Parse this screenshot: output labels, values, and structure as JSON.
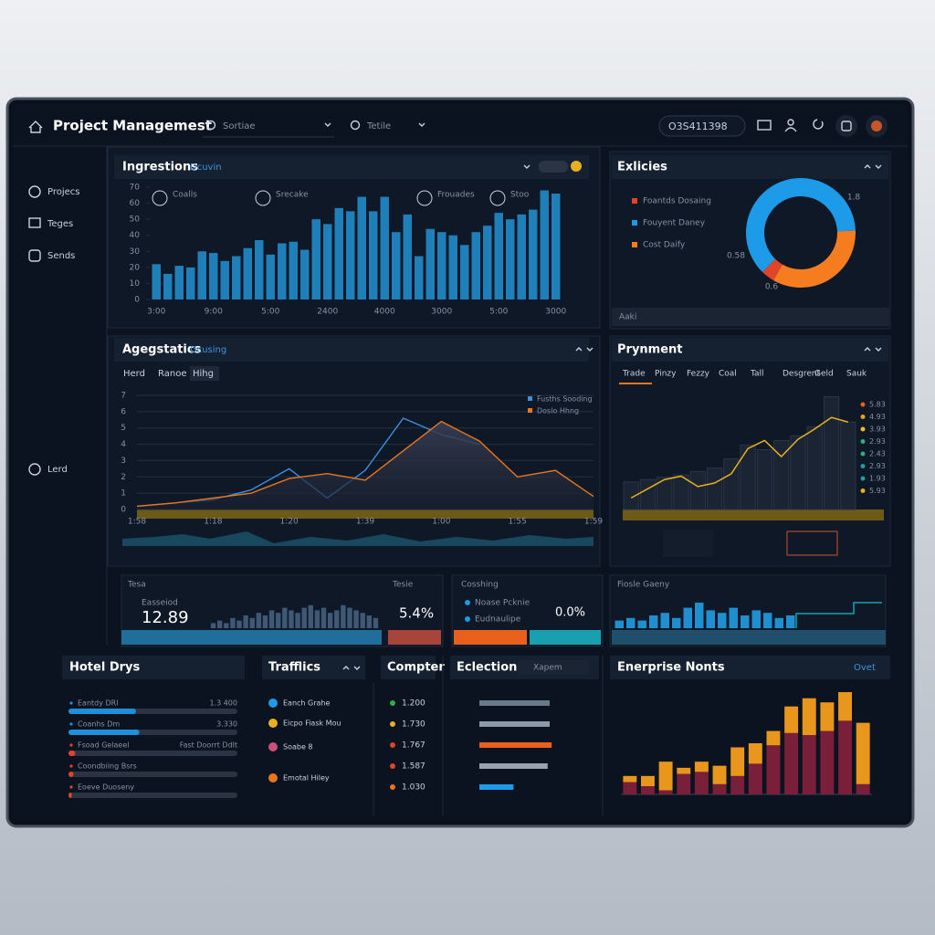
{
  "header": {
    "title": "Project Managemest",
    "search": "Sortiae",
    "filter": "Tetile",
    "account": "O3S411398"
  },
  "sidebar": {
    "items": [
      "Projecs",
      "Teges",
      "Sends"
    ],
    "footer": "Lerd"
  },
  "inputs": {
    "exlicies": "Aaki",
    "eclection": "Xapem",
    "enterprise": "Ovet"
  },
  "kpis": [
    {
      "title": "Tesa",
      "value": "12.89",
      "label": "Easseiod"
    },
    {
      "title": "Tesie",
      "value": "5.4%"
    },
    {
      "title": "Cosshing",
      "value": "0.0%",
      "items": [
        "Noase Pcknie",
        "Eudnaulipe"
      ]
    },
    {
      "title": "Fiosle Gaeny"
    }
  ],
  "traffics": {
    "title": "Trafflics",
    "items": [
      "Eanch Grahe",
      "Eicpo Fiask Mou",
      "Soabe 8",
      "Emotal Hiley"
    ]
  },
  "compter": {
    "title": "Compter",
    "items": [
      "1.200",
      "1.730",
      "1.767",
      "1.587",
      "1.030"
    ]
  },
  "chart_data": [
    {
      "type": "bar",
      "title": "Ingrestions",
      "subtitle": "Dcuvin",
      "color": "#1f7fb8",
      "annotations": [
        "Coalls",
        "Srecake",
        "Frouades",
        "Stoo"
      ],
      "categories": [
        "3:00",
        null,
        null,
        null,
        null,
        "9:00",
        null,
        null,
        null,
        null,
        "5:00",
        null,
        null,
        null,
        null,
        "2400",
        null,
        null,
        null,
        null,
        "4000",
        null,
        null,
        null,
        null,
        "3000",
        null,
        null,
        null,
        null,
        "5:00",
        null,
        null,
        null,
        null,
        "3000"
      ],
      "values": [
        22,
        16,
        21,
        20,
        30,
        29,
        24,
        27,
        32,
        37,
        28,
        35,
        36,
        31,
        50,
        47,
        57,
        55,
        64,
        55,
        64,
        42,
        53,
        27,
        44,
        42,
        40,
        34,
        42,
        46,
        54,
        50,
        53,
        56,
        68,
        66
      ],
      "ylim": [
        0,
        70
      ],
      "yticks": [
        0,
        10,
        20,
        30,
        40,
        50,
        60,
        70
      ],
      "grid": false
    },
    {
      "type": "donut",
      "title": "Exlicies",
      "categories": [
        "Foantds Dosaing",
        "Fouyent Daney",
        "Cost Daify"
      ],
      "values": [
        4,
        62,
        34
      ],
      "colors": [
        "#e0452a",
        "#1e9be8",
        "#f57c1f"
      ],
      "annotations": [
        "0.58",
        "0.6",
        "1.8"
      ]
    },
    {
      "type": "line",
      "title": "Agegstatics",
      "subtitle": "Dcusing",
      "tabs": [
        "Herd",
        "Ranoe",
        "Hihg"
      ],
      "categories": [
        "1:58",
        null,
        "1:18",
        null,
        "1:20",
        null,
        "1:39",
        null,
        "1:00",
        null,
        "1:55",
        null,
        "1:59"
      ],
      "series": [
        {
          "name": "Fusths Sooding",
          "color": "#3d8fe0",
          "area": false,
          "values": [
            0.2,
            0.4,
            0.6,
            1.2,
            2.5,
            0.7,
            2.4,
            5.6,
            4.6,
            4.0,
            null,
            null,
            null
          ]
        },
        {
          "name": "Doslo Hhng",
          "color": "#e8761c",
          "area": true,
          "values": [
            0.2,
            0.4,
            0.7,
            1.0,
            1.9,
            2.2,
            1.8,
            3.6,
            5.4,
            4.2,
            2.0,
            2.4,
            0.8
          ]
        }
      ],
      "ylim": [
        0,
        7
      ],
      "yticks": [
        0,
        1,
        2,
        3,
        4,
        5,
        6,
        7
      ],
      "grid": true,
      "legend": "top-right"
    },
    {
      "type": "combo",
      "title": "Prynment",
      "tabs": [
        "Trade",
        "Pinzy",
        "Fezzy",
        "Coal",
        "Tall",
        "Desgrent",
        "Geld",
        "Sauk"
      ],
      "series": [
        {
          "type": "bar",
          "color": "#1b2433",
          "values": [
            2.4,
            2.6,
            2.8,
            3.0,
            3.3,
            3.6,
            4.4,
            5.6,
            5.2,
            6.0,
            6.4,
            7.2,
            9.8,
            7.6
          ]
        },
        {
          "type": "line",
          "color": "#e8b020",
          "values": [
            1.0,
            1.8,
            2.6,
            2.9,
            2.0,
            2.3,
            3.1,
            5.3,
            6.0,
            4.6,
            6.1,
            7.0,
            8.0,
            7.6
          ]
        }
      ],
      "ylim": [
        0,
        10
      ],
      "legend_values": [
        {
          "label": "5.83",
          "color": "#e8601c"
        },
        {
          "label": "4.93",
          "color": "#e8a020"
        },
        {
          "label": "3.93",
          "color": "#e8c020"
        },
        {
          "label": "2.93",
          "color": "#2ab07a"
        },
        {
          "label": "2.43",
          "color": "#2ab07a"
        },
        {
          "label": "2.93",
          "color": "#1aa0a0"
        },
        {
          "label": "1.93",
          "color": "#1aa0a0"
        },
        {
          "label": "5.93",
          "color": "#e8b020"
        }
      ]
    },
    {
      "type": "bar",
      "color": "#3f5873",
      "values": [
        2,
        3,
        2,
        4,
        3,
        5,
        4,
        6,
        5,
        7,
        6,
        8,
        7,
        6,
        8,
        9,
        7,
        8,
        6,
        7,
        9,
        8,
        7,
        6,
        5,
        4
      ],
      "ylim": [
        0,
        10
      ]
    },
    {
      "type": "bar",
      "color": "#1f8fd0",
      "values": [
        3,
        4,
        3,
        5,
        6,
        4,
        8,
        10,
        7,
        6,
        8,
        5,
        7,
        6,
        4,
        5
      ],
      "ylim": [
        0,
        10
      ]
    },
    {
      "type": "hbar",
      "title": "Hotel Drys",
      "categories": [
        "Eantdy DRl",
        "Coanhs Dm",
        "Fsoad Gelaeel",
        "Coondbiing Bsrs",
        "Eoeve Duoseny"
      ],
      "right_labels": [
        "1.3 400",
        "3.330",
        "Fast Doorrt Ddlt",
        null,
        null
      ],
      "values": [
        40,
        42,
        4,
        3,
        2
      ],
      "colors": [
        "#1e8fd8",
        "#1e8fd8",
        "#e0452a",
        "#e0452a",
        "#e0452a"
      ],
      "xlim": [
        0,
        100
      ]
    },
    {
      "type": "hbar",
      "title": "Eclection",
      "values": [
        70,
        70,
        72,
        68,
        34
      ],
      "colors": [
        "#6b7a8a",
        "#8a9aa8",
        "#e8601c",
        "#9aa3ad",
        "#1e9be8"
      ],
      "xlim": [
        0,
        100
      ]
    },
    {
      "type": "stacked",
      "title": "Enerprise Nonts",
      "series": [
        {
          "color": "#7a1f3a",
          "values": [
            12,
            8,
            4,
            20,
            22,
            10,
            18,
            30,
            48,
            60,
            58,
            62,
            72,
            10
          ]
        },
        {
          "color": "#e8961c",
          "values": [
            6,
            10,
            28,
            6,
            10,
            18,
            28,
            20,
            14,
            26,
            36,
            28,
            28,
            60
          ]
        }
      ],
      "ylim": [
        0,
        100
      ]
    }
  ]
}
